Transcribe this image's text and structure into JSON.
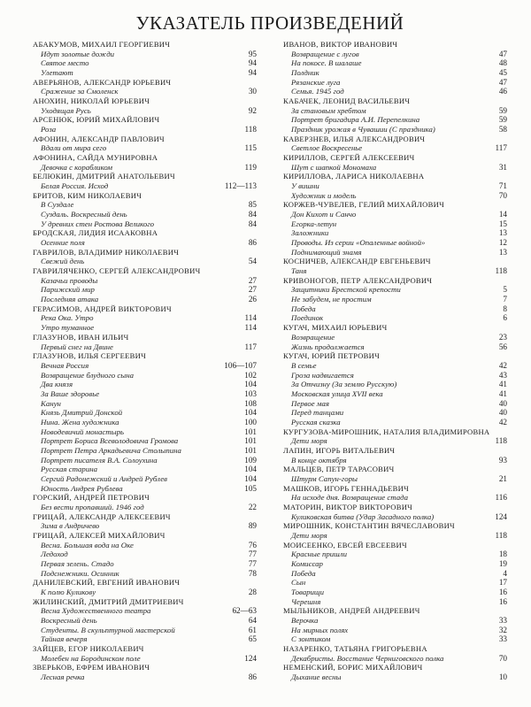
{
  "page": {
    "title": "УКАЗАТЕЛЬ ПРОИЗВЕДЕНИЙ"
  },
  "index": {
    "columns": [
      {
        "artists": [
          {
            "name": "АБАКУМОВ, МИХАИЛ ГЕОРГИЕВИЧ",
            "works": [
              {
                "title": "Идут золотые дожди",
                "page": "95"
              },
              {
                "title": "Святое место",
                "page": "94"
              },
              {
                "title": "Улетают",
                "page": "94"
              }
            ]
          },
          {
            "name": "АВЕРЬЯНОВ, АЛЕКСАНДР ЮРЬЕВИЧ",
            "works": [
              {
                "title": "Сражение за Смоленск",
                "page": "30"
              }
            ]
          },
          {
            "name": "АНОХИН, НИКОЛАЙ ЮРЬЕВИЧ",
            "works": [
              {
                "title": "Уходящая Русь",
                "page": "92"
              }
            ]
          },
          {
            "name": "АРСЕНЮК, ЮРИЙ МИХАЙЛОВИЧ",
            "works": [
              {
                "title": "Роза",
                "page": "118"
              }
            ]
          },
          {
            "name": "АФОНИН, АЛЕКСАНДР ПАВЛОВИЧ",
            "works": [
              {
                "title": "Вдали от мира сего",
                "page": "115"
              }
            ]
          },
          {
            "name": "АФОНИНА, САЙДА МУНИРОВНА",
            "works": [
              {
                "title": "Девочка с корабликом",
                "page": "119"
              }
            ]
          },
          {
            "name": "БЕЛЮКИН, ДМИТРИЙ АНАТОЛЬЕВИЧ",
            "works": [
              {
                "title": "Белая Россия. Исход",
                "page": "112—113"
              }
            ]
          },
          {
            "name": "БРИТОВ, КИМ НИКОЛАЕВИЧ",
            "works": [
              {
                "title": "В Суздале",
                "page": "85"
              },
              {
                "title": "Суздаль. Воскресный день",
                "page": "84"
              },
              {
                "title": "У древних стен Ростова Великого",
                "page": "84"
              }
            ]
          },
          {
            "name": "БРОДСКАЯ, ЛИДИЯ ИСААКОВНА",
            "works": [
              {
                "title": "Осенние поля",
                "page": "86"
              }
            ]
          },
          {
            "name": "ГАВРИЛОВ, ВЛАДИМИР НИКОЛАЕВИЧ",
            "works": [
              {
                "title": "Свежий день",
                "page": "54"
              }
            ]
          },
          {
            "name": "ГАВРИЛЯЧЕНКО, СЕРГЕЙ АЛЕКСАНДРОВИЧ",
            "works": [
              {
                "title": "Казачьи проводы",
                "page": "27"
              },
              {
                "title": "Парижский мир",
                "page": "27"
              },
              {
                "title": "Последняя атака",
                "page": "26"
              }
            ]
          },
          {
            "name": "ГЕРАСИМОВ, АНДРЕЙ ВИКТОРОВИЧ",
            "works": [
              {
                "title": "Река Ока. Утро",
                "page": "114"
              },
              {
                "title": "Утро туманное",
                "page": "114"
              }
            ]
          },
          {
            "name": "ГЛАЗУНОВ, ИВАН ИЛЬИЧ",
            "works": [
              {
                "title": "Первый снег на Двине",
                "page": "117"
              }
            ]
          },
          {
            "name": "ГЛАЗУНОВ, ИЛЬЯ СЕРГЕЕВИЧ",
            "works": [
              {
                "title": "Вечная Россия",
                "page": "106—107"
              },
              {
                "title": "Возвращение блудного сына",
                "page": "102"
              },
              {
                "title": "Два князя",
                "page": "104"
              },
              {
                "title": "За Ваше здоровье",
                "page": "103"
              },
              {
                "title": "Канун",
                "page": "108"
              },
              {
                "title": "Князь Дмитрий Донской",
                "page": "104"
              },
              {
                "title": "Нина. Жена художника",
                "page": "100"
              },
              {
                "title": "Новодевичий монастырь",
                "page": "101"
              },
              {
                "title": "Портрет Бориса Всеволодовича Громова",
                "page": "101"
              },
              {
                "title": "Портрет Петра Аркадьевича Столыпина",
                "page": "101"
              },
              {
                "title": "Портрет писателя В.А. Солоухина",
                "page": "109"
              },
              {
                "title": "Русская старина",
                "page": "104"
              },
              {
                "title": "Сергий Радонежский и Андрей Рублев",
                "page": "104"
              },
              {
                "title": "Юность Андрея Рублева",
                "page": "105"
              }
            ]
          },
          {
            "name": "ГОРСКИЙ, АНДРЕЙ ПЕТРОВИЧ",
            "works": [
              {
                "title": "Без вести пропавший. 1946 год",
                "page": "22"
              }
            ]
          },
          {
            "name": "ГРИЦАЙ, АЛЕКСАНДР АЛЕКСЕЕВИЧ",
            "works": [
              {
                "title": "Зима в Андричево",
                "page": "89"
              }
            ]
          },
          {
            "name": "ГРИЦАЙ, АЛЕКСЕЙ МИХАЙЛОВИЧ",
            "works": [
              {
                "title": "Весна. Большая вода на Оке",
                "page": "76"
              },
              {
                "title": "Ледоход",
                "page": "77"
              },
              {
                "title": "Первая зелень. Стадо",
                "page": "77"
              },
              {
                "title": "Подснежники. Осинник",
                "page": "78"
              }
            ]
          },
          {
            "name": "ДАНИЛЕВСКИЙ, ЕВГЕНИЙ ИВАНОВИЧ",
            "works": [
              {
                "title": "К полю Куликову",
                "page": "28"
              }
            ]
          },
          {
            "name": "ЖИЛИНСКИЙ, ДМИТРИЙ ДМИТРИЕВИЧ",
            "works": [
              {
                "title": "Весна Художественного театра",
                "page": "62—63"
              },
              {
                "title": "Воскресный день",
                "page": "64"
              },
              {
                "title": "Студенты. В скульптурной мастерской",
                "page": "61"
              },
              {
                "title": "Тайная вечеря",
                "page": "65"
              }
            ]
          },
          {
            "name": "ЗАЙЦЕВ, ЕГОР НИКОЛАЕВИЧ",
            "works": [
              {
                "title": "Молебен на Бородинском поле",
                "page": "124"
              }
            ]
          },
          {
            "name": "ЗВЕРЬКОВ, ЕФРЕМ ИВАНОВИЧ",
            "works": [
              {
                "title": "Лесная речка",
                "page": "86"
              }
            ]
          }
        ]
      },
      {
        "artists": [
          {
            "name": "ИВАНОВ, ВИКТОР ИВАНОВИЧ",
            "works": [
              {
                "title": "Возвращение с лугов",
                "page": "47"
              },
              {
                "title": "На покосе. В шалаше",
                "page": "48"
              },
              {
                "title": "Полдник",
                "page": "45"
              },
              {
                "title": "Рязанские луга",
                "page": "47"
              },
              {
                "title": "Семья. 1945 год",
                "page": "46"
              }
            ]
          },
          {
            "name": "КАБАЧЕК, ЛЕОНИД ВАСИЛЬЕВИЧ",
            "works": [
              {
                "title": "За становым хребтом",
                "page": "59"
              },
              {
                "title": "Портрет бригадира А.И. Перепелкина",
                "page": "59"
              },
              {
                "title": "Праздник урожая в Чувашии (С праздника)",
                "page": "58"
              }
            ]
          },
          {
            "name": "КАВЕРЗНЕВ, ИЛЬЯ АЛЕКСАНДРОВИЧ",
            "works": [
              {
                "title": "Светлое Воскресенье",
                "page": "117"
              }
            ]
          },
          {
            "name": "КИРИЛЛОВ, СЕРГЕЙ АЛЕКСЕЕВИЧ",
            "works": [
              {
                "title": "Шут с шапкой Мономаха",
                "page": "31"
              }
            ]
          },
          {
            "name": "КИРИЛЛОВА, ЛАРИСА НИКОЛАЕВНА",
            "works": [
              {
                "title": "У вишни",
                "page": "71"
              },
              {
                "title": "Художник и модель",
                "page": "70"
              }
            ]
          },
          {
            "name": "КОРЖЕВ-ЧУВЕЛЕВ, ГЕЛИЙ МИХАЙЛОВИЧ",
            "works": [
              {
                "title": "Дон Кихот и Санчо",
                "page": "14"
              },
              {
                "title": "Егорка-летун",
                "page": "15"
              },
              {
                "title": "Заложники",
                "page": "13"
              },
              {
                "title": "Проводы. Из серии «Опаленные войной»",
                "page": "12"
              },
              {
                "title": "Поднимающий знамя",
                "page": "13"
              }
            ]
          },
          {
            "name": "КОСНИЧЕВ, АЛЕКСАНДР ЕВГЕНЬЕВИЧ",
            "works": [
              {
                "title": "Таня",
                "page": "118"
              }
            ]
          },
          {
            "name": "КРИВОНОГОВ, ПЕТР АЛЕКСАНДРОВИЧ",
            "works": [
              {
                "title": "Защитники Брестской крепости",
                "page": "5"
              },
              {
                "title": "Не забудем, не простим",
                "page": "7"
              },
              {
                "title": "Победа",
                "page": "8"
              },
              {
                "title": "Поединок",
                "page": "6"
              }
            ]
          },
          {
            "name": "КУГАЧ, МИХАИЛ ЮРЬЕВИЧ",
            "works": [
              {
                "title": "Возвращение",
                "page": "23"
              },
              {
                "title": "Жизнь продолжается",
                "page": "56"
              }
            ]
          },
          {
            "name": "КУГАЧ, ЮРИЙ ПЕТРОВИЧ",
            "works": [
              {
                "title": "В семье",
                "page": "42"
              },
              {
                "title": "Гроза надвигается",
                "page": "43"
              },
              {
                "title": "За Отчизну (За землю Русскую)",
                "page": "41"
              },
              {
                "title": "Московская улица XVII века",
                "page": "41"
              },
              {
                "title": "Первое мая",
                "page": "40"
              },
              {
                "title": "Перед танцами",
                "page": "40"
              },
              {
                "title": "Русская сказка",
                "page": "42"
              }
            ]
          },
          {
            "name": "КУРГУЗОВА-МИРОШНИК, НАТАЛИЯ ВЛАДИМИРОВНА",
            "works": [
              {
                "title": "Дети моря",
                "page": "118"
              }
            ]
          },
          {
            "name": "ЛАПИН, ИГОРЬ ВИТАЛЬЕВИЧ",
            "works": [
              {
                "title": "В конце октября",
                "page": "93"
              }
            ]
          },
          {
            "name": "МАЛЬЦЕВ, ПЕТР ТАРАСОВИЧ",
            "works": [
              {
                "title": "Штурм Сапун-горы",
                "page": "21"
              }
            ]
          },
          {
            "name": "МАШКОВ, ИГОРЬ ГЕННАДЬЕВИЧ",
            "works": [
              {
                "title": "На исходе дня. Возвращение стада",
                "page": "116"
              }
            ]
          },
          {
            "name": "МАТОРИН, ВИКТОР ВИКТОРОВИЧ",
            "works": [
              {
                "title": "Куликовская битва (Удар Засадного полка)",
                "page": "124"
              }
            ]
          },
          {
            "name": "МИРОШНИК, КОНСТАНТИН ВЯЧЕСЛАВОВИЧ",
            "works": [
              {
                "title": "Дети моря",
                "page": "118"
              }
            ]
          },
          {
            "name": "МОИСЕЕНКО, ЕВСЕЙ ЕВСЕЕВИЧ",
            "works": [
              {
                "title": "Красные пришли",
                "page": "18"
              },
              {
                "title": "Комиссар",
                "page": "19"
              },
              {
                "title": "Победа",
                "page": "4"
              },
              {
                "title": "Сын",
                "page": "17"
              },
              {
                "title": "Товарищи",
                "page": "16"
              },
              {
                "title": "Черешня",
                "page": "16"
              }
            ]
          },
          {
            "name": "МЫЛЬНИКОВ, АНДРЕЙ АНДРЕЕВИЧ",
            "works": [
              {
                "title": "Верочка",
                "page": "33"
              },
              {
                "title": "На мирных полях",
                "page": "32"
              },
              {
                "title": "С зонтиком",
                "page": "33"
              }
            ]
          },
          {
            "name": "НАЗАРЕНКО, ТАТЬЯНА ГРИГОРЬЕВНА",
            "works": [
              {
                "title": "Декабристы. Восстание Черниговского полка",
                "page": "70"
              }
            ]
          },
          {
            "name": "НЕМЕНСКИЙ, БОРИС МИХАЙЛОВИЧ",
            "works": [
              {
                "title": "Дыхание весны",
                "page": "10"
              }
            ]
          }
        ]
      }
    ]
  }
}
